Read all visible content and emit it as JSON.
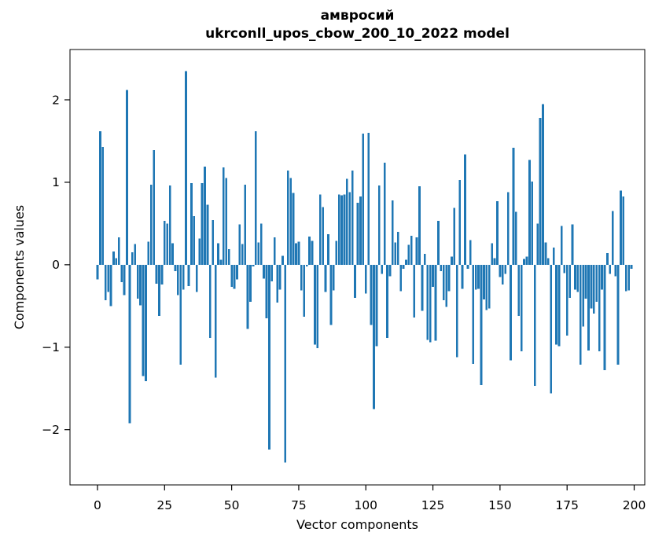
{
  "chart_data": {
    "type": "bar",
    "title": "амвросий",
    "subtitle": "ukrconll_upos_cbow_200_10_2022 model",
    "xlabel": "Vector components",
    "ylabel": "Components values",
    "x_ticks": [
      0,
      25,
      50,
      75,
      100,
      125,
      150,
      175,
      200
    ],
    "y_ticks": [
      -2,
      -1,
      0,
      1,
      2
    ],
    "xlim": [
      -10.25,
      203.95
    ],
    "ylim": [
      -2.67,
      2.61
    ],
    "grid": false,
    "legend": null,
    "bar_color": "#1f77b4",
    "axis_color": "#000000",
    "n_components": 200,
    "values": [
      -0.18,
      1.62,
      1.43,
      -0.43,
      -0.33,
      -0.5,
      0.16,
      0.08,
      0.33,
      -0.21,
      -0.37,
      2.12,
      -1.92,
      0.15,
      0.25,
      -0.41,
      -0.49,
      -1.35,
      -1.41,
      0.28,
      0.97,
      1.39,
      -0.23,
      -0.62,
      -0.24,
      0.53,
      0.5,
      0.96,
      0.26,
      -0.08,
      -0.37,
      -1.21,
      -0.3,
      2.35,
      -0.26,
      0.99,
      0.59,
      -0.33,
      0.32,
      0.99,
      1.19,
      0.73,
      -0.89,
      0.54,
      -1.37,
      0.26,
      0.06,
      1.18,
      1.05,
      0.19,
      -0.27,
      -0.29,
      -0.18,
      0.49,
      0.25,
      0.97,
      -0.78,
      -0.45,
      -0.02,
      1.62,
      0.27,
      0.5,
      -0.17,
      -0.65,
      -2.24,
      -0.2,
      0.33,
      -0.46,
      -0.3,
      0.11,
      -2.4,
      1.14,
      1.05,
      0.87,
      0.26,
      0.28,
      -0.31,
      -0.63,
      -0.02,
      0.34,
      0.29,
      -0.97,
      -1.01,
      0.85,
      0.7,
      -0.33,
      0.37,
      -0.73,
      -0.31,
      0.29,
      0.85,
      0.84,
      0.85,
      1.04,
      0.88,
      1.14,
      -0.4,
      0.75,
      0.83,
      1.59,
      -0.35,
      1.6,
      -0.73,
      -1.75,
      -0.99,
      0.96,
      -0.11,
      1.24,
      -0.89,
      -0.14,
      0.78,
      0.27,
      0.4,
      -0.32,
      -0.05,
      0.06,
      0.24,
      0.35,
      -0.64,
      0.33,
      0.95,
      -0.56,
      0.13,
      -0.91,
      -0.94,
      -0.27,
      -0.92,
      0.53,
      -0.08,
      -0.43,
      -0.51,
      -0.32,
      0.1,
      0.69,
      -1.12,
      1.03,
      -0.29,
      1.34,
      -0.05,
      0.3,
      -1.2,
      -0.3,
      -0.29,
      -1.46,
      -0.42,
      -0.55,
      -0.53,
      0.26,
      0.08,
      0.77,
      -0.15,
      -0.24,
      -0.11,
      0.88,
      -1.16,
      1.42,
      0.64,
      -0.62,
      -1.05,
      0.07,
      0.1,
      1.27,
      1.01,
      -1.47,
      0.5,
      1.78,
      1.95,
      0.27,
      0.08,
      -1.56,
      0.21,
      -0.97,
      -0.99,
      0.47,
      -0.1,
      -0.86,
      -0.4,
      0.49,
      -0.3,
      -0.33,
      -1.21,
      -0.75,
      -0.41,
      -1.04,
      -0.53,
      -0.59,
      -0.45,
      -1.05,
      -0.3,
      -1.28,
      0.14,
      -0.11,
      0.65,
      -0.14,
      -1.21,
      0.9,
      0.83,
      -0.32,
      -0.31,
      -0.05
    ]
  }
}
